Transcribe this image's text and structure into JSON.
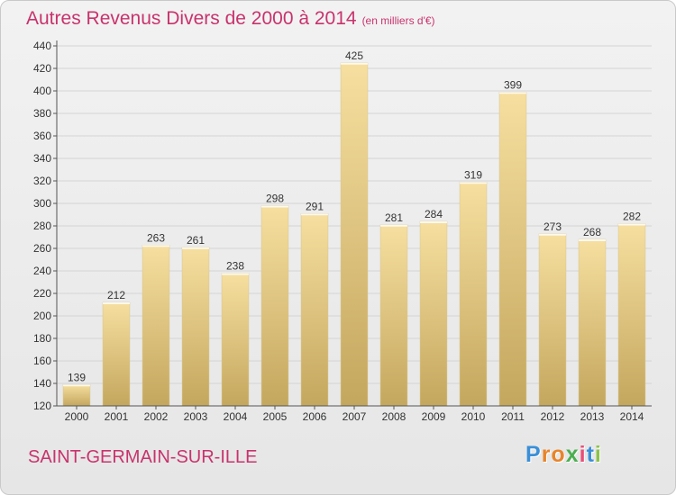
{
  "title": "Autres Revenus Divers de 2000 à 2014",
  "subtitle": "(en milliers d'€)",
  "commune": "SAINT-GERMAIN-SUR-ILLE",
  "logo": {
    "letters": [
      "P",
      "r",
      "o",
      "x",
      "i",
      "t",
      "i"
    ],
    "colors": [
      "#3a8fd8",
      "#e8842a",
      "#e8842a",
      "#4caf50",
      "#e94e77",
      "#3a8fd8",
      "#8bc34a"
    ]
  },
  "colors": {
    "title": "#c8336c",
    "bar_light": "#f6dfa0",
    "bar_dark": "#c4a75e"
  },
  "chart_data": {
    "type": "bar",
    "categories": [
      "2000",
      "2001",
      "2002",
      "2003",
      "2004",
      "2005",
      "2006",
      "2007",
      "2008",
      "2009",
      "2010",
      "2011",
      "2012",
      "2013",
      "2014"
    ],
    "values": [
      139,
      212,
      263,
      261,
      238,
      298,
      291,
      425,
      281,
      284,
      319,
      399,
      273,
      268,
      282
    ],
    "ylim": [
      120,
      440
    ],
    "yticks": [
      120,
      140,
      160,
      180,
      200,
      220,
      240,
      260,
      280,
      300,
      320,
      340,
      360,
      380,
      400,
      420,
      440
    ],
    "grid": true,
    "xlabel": "",
    "ylabel": ""
  }
}
